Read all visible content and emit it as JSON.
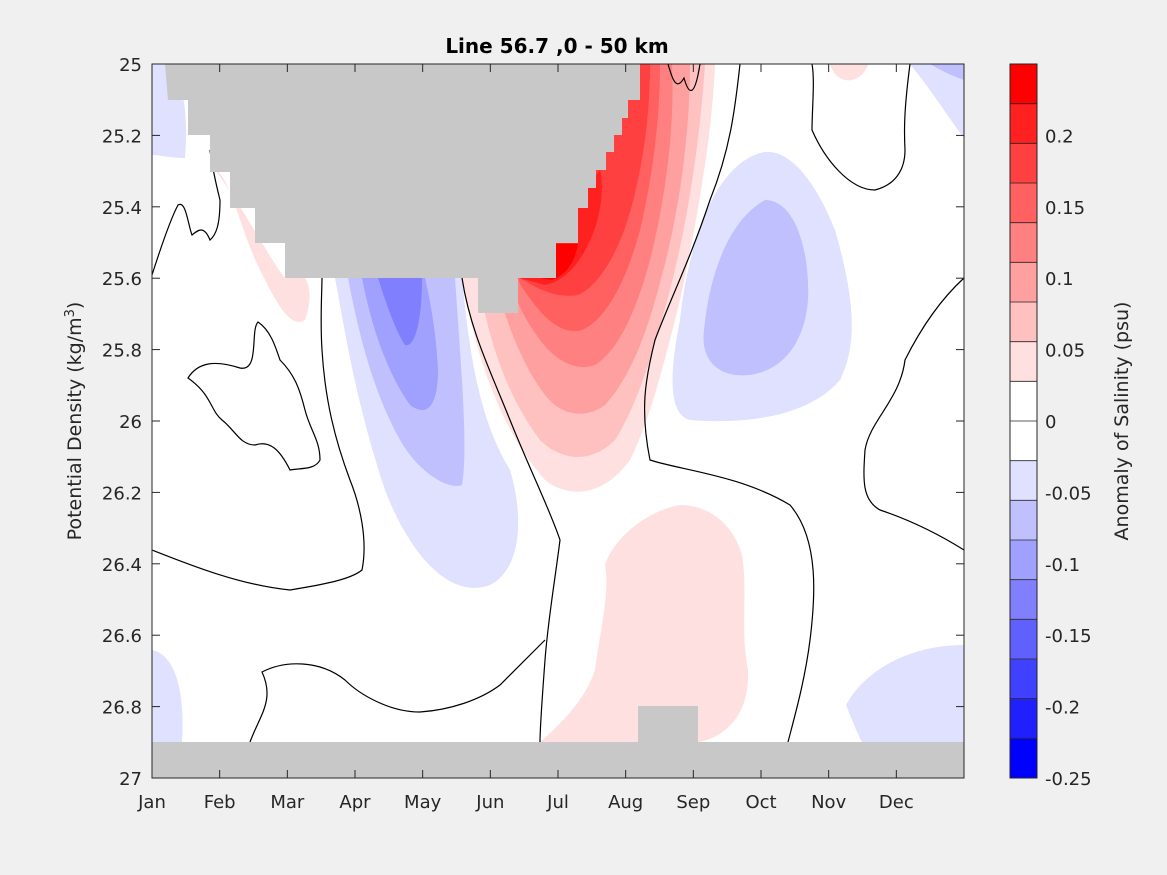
{
  "chart_data": {
    "type": "heatmap",
    "title": "Line 56.7 ,0 - 50 km",
    "ylabel_main": "Potential Density (kg/m",
    "ylabel_sup": "3",
    "ylabel_close": ")",
    "colorbar_label": "Anomaly of Salinity (psu)",
    "x_ticks": [
      "Jan",
      "Feb",
      "Mar",
      "Apr",
      "May",
      "Jun",
      "Jul",
      "Aug",
      "Sep",
      "Oct",
      "Nov",
      "Dec"
    ],
    "x_range": [
      0,
      12
    ],
    "y_ticks": [
      "25",
      "25.2",
      "25.4",
      "25.6",
      "25.8",
      "26",
      "26.2",
      "26.4",
      "26.6",
      "26.8",
      "27"
    ],
    "y_range": [
      25,
      27
    ],
    "y_reversed": true,
    "colorbar_ticks": [
      "0.2",
      "0.15",
      "0.1",
      "0.05",
      "0",
      "-0.05",
      "-0.1",
      "-0.15",
      "-0.2",
      "-0.25"
    ],
    "colorbar_tick_values": [
      0.2,
      0.15,
      0.1,
      0.05,
      0,
      -0.05,
      -0.1,
      -0.15,
      -0.2,
      -0.25
    ],
    "colorbar_range": [
      -0.25,
      0.25
    ],
    "colorbar_colors": [
      "#0000ff",
      "#2020ff",
      "#4040ff",
      "#6060ff",
      "#8080ff",
      "#a0a0ff",
      "#c0c0ff",
      "#e0e0ff",
      "#ffffff",
      "#ffffff",
      "#ffe0e0",
      "#ffc0c0",
      "#ffa0a0",
      "#ff8080",
      "#ff6060",
      "#ff4040",
      "#ff2020",
      "#ff0000"
    ],
    "no_data_color": "#c8c8c8",
    "features": [
      {
        "name": "positive-anomaly-core",
        "month": 6.8,
        "density": 25.75,
        "value": 0.22
      },
      {
        "name": "negative-anomaly-may",
        "month": 4.1,
        "density": 25.95,
        "value": -0.12
      },
      {
        "name": "negative-anomaly-oct",
        "month": 9.4,
        "density": 25.75,
        "value": -0.08
      },
      {
        "name": "positive-anomaly-aug-deep",
        "month": 7.8,
        "density": 26.55,
        "value": 0.03
      }
    ]
  }
}
